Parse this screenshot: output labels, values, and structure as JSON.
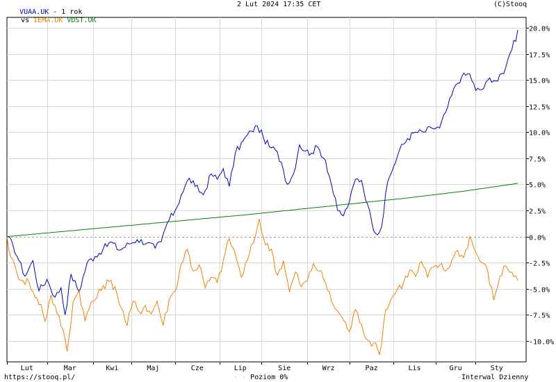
{
  "header": {
    "main_symbol": "VUAA.UK",
    "period": " - 1 rok",
    "vs_label": "vs ",
    "compare_symbols": [
      "IEMA.UK",
      "VDST.UK"
    ],
    "datetime": "2 Lut 2024 17:35 CET",
    "copyright": "(C)Stooq"
  },
  "footer": {
    "url": "https://stooq.pl/",
    "zero_level_label": "Poziom 0%",
    "interval_label": "Interwal Dzienny"
  },
  "colors": {
    "VUAA.UK": "#0000c0",
    "IEMA.UK": "#f08000",
    "VDST.UK": "#008000",
    "grid": "#d8d8d8",
    "zero_line": "#a0a0a0"
  },
  "chart_data": {
    "type": "line",
    "x_unit": "trading days (1 year, Feb 2023 - Feb 2024)",
    "month_labels": [
      "Lut",
      "Mar",
      "Kwi",
      "Maj",
      "Cze",
      "Lip",
      "Sie",
      "Wrz",
      "Paz",
      "Lis",
      "Gru",
      "Sty"
    ],
    "month_start_index": [
      0,
      20,
      43,
      62,
      84,
      106,
      127,
      150,
      171,
      193,
      214,
      234
    ],
    "x_count": 256,
    "ylim": [
      -12,
      21
    ],
    "yticks": [
      20,
      17.5,
      15,
      12.5,
      10,
      7.5,
      5,
      2.5,
      0,
      -2.5,
      -5,
      -7.5,
      -10
    ],
    "ytick_labels": [
      "20.0%",
      "17.5%",
      "15.0%",
      "12.5%",
      "10.0%",
      "7.5%",
      "5.0%",
      "2.5%",
      "0.0%",
      "-2.5%",
      "-5.0%",
      "-7.5%",
      "-10.0%"
    ],
    "series": [
      {
        "name": "VUAA.UK",
        "anchors": [
          [
            0,
            0
          ],
          [
            3,
            -0.8
          ],
          [
            6,
            -2.3
          ],
          [
            9,
            -3.8
          ],
          [
            13,
            -2.3
          ],
          [
            16,
            -5.2
          ],
          [
            20,
            -4.1
          ],
          [
            24,
            -5.8
          ],
          [
            27,
            -4.9
          ],
          [
            29,
            -7.5
          ],
          [
            32,
            -3.6
          ],
          [
            36,
            -5.3
          ],
          [
            40,
            -2.5
          ],
          [
            44,
            -1.9
          ],
          [
            48,
            -1.2
          ],
          [
            52,
            -0.5
          ],
          [
            56,
            -1.3
          ],
          [
            61,
            -0.7
          ],
          [
            65,
            -0.3
          ],
          [
            70,
            -0.6
          ],
          [
            74,
            -1.1
          ],
          [
            77,
            -0.5
          ],
          [
            80,
            1.3
          ],
          [
            84,
            2.5
          ],
          [
            87,
            4.0
          ],
          [
            91,
            5.6
          ],
          [
            94,
            4.8
          ],
          [
            98,
            4.0
          ],
          [
            102,
            6.0
          ],
          [
            105,
            5.5
          ],
          [
            108,
            6.5
          ],
          [
            111,
            4.8
          ],
          [
            114,
            8.0
          ],
          [
            118,
            9.2
          ],
          [
            122,
            10.1
          ],
          [
            125,
            10.6
          ],
          [
            128,
            9.5
          ],
          [
            131,
            8.6
          ],
          [
            134,
            8.3
          ],
          [
            137,
            7.1
          ],
          [
            140,
            5.0
          ],
          [
            143,
            6.0
          ],
          [
            146,
            8.8
          ],
          [
            149,
            8.2
          ],
          [
            152,
            8.0
          ],
          [
            155,
            8.6
          ],
          [
            159,
            7.3
          ],
          [
            162,
            5.0
          ],
          [
            165,
            2.5
          ],
          [
            168,
            2.0
          ],
          [
            171,
            3.4
          ],
          [
            174,
            5.5
          ],
          [
            177,
            5.4
          ],
          [
            180,
            3.1
          ],
          [
            182,
            1.5
          ],
          [
            184,
            0.3
          ],
          [
            187,
            0.9
          ],
          [
            190,
            5.2
          ],
          [
            193,
            6.7
          ],
          [
            196,
            8.3
          ],
          [
            200,
            9.4
          ],
          [
            204,
            10.0
          ],
          [
            208,
            10.0
          ],
          [
            212,
            10.4
          ],
          [
            216,
            10.4
          ],
          [
            220,
            12.4
          ],
          [
            224,
            14.5
          ],
          [
            227,
            15.3
          ],
          [
            231,
            15.6
          ],
          [
            234,
            14.0
          ],
          [
            238,
            14.2
          ],
          [
            241,
            15.2
          ],
          [
            245,
            14.9
          ],
          [
            249,
            16.2
          ],
          [
            251,
            17.5
          ],
          [
            253,
            18.8
          ],
          [
            254,
            18.7
          ],
          [
            255,
            19.8
          ]
        ]
      },
      {
        "name": "IEMA.UK",
        "anchors": [
          [
            0,
            0
          ],
          [
            2,
            -2.0
          ],
          [
            5,
            -3.5
          ],
          [
            8,
            -4.2
          ],
          [
            11,
            -4.3
          ],
          [
            14,
            -5.8
          ],
          [
            17,
            -6.5
          ],
          [
            19,
            -8.1
          ],
          [
            22,
            -5.6
          ],
          [
            25,
            -7.4
          ],
          [
            28,
            -8.9
          ],
          [
            30,
            -11.0
          ],
          [
            33,
            -6.3
          ],
          [
            36,
            -5.1
          ],
          [
            39,
            -8.1
          ],
          [
            42,
            -6.3
          ],
          [
            45,
            -5.8
          ],
          [
            48,
            -4.7
          ],
          [
            51,
            -4.3
          ],
          [
            54,
            -4.8
          ],
          [
            57,
            -6.8
          ],
          [
            60,
            -8.5
          ],
          [
            63,
            -6.2
          ],
          [
            66,
            -7.2
          ],
          [
            69,
            -6.6
          ],
          [
            72,
            -7.4
          ],
          [
            75,
            -6.2
          ],
          [
            78,
            -8.5
          ],
          [
            81,
            -6.0
          ],
          [
            84,
            -5.2
          ],
          [
            87,
            -2.6
          ],
          [
            90,
            -1.2
          ],
          [
            93,
            -3.3
          ],
          [
            96,
            -2.7
          ],
          [
            99,
            -4.9
          ],
          [
            102,
            -3.9
          ],
          [
            105,
            -4.4
          ],
          [
            108,
            -2.3
          ],
          [
            111,
            -0.2
          ],
          [
            114,
            -1.7
          ],
          [
            117,
            -3.9
          ],
          [
            120,
            -2.3
          ],
          [
            123,
            -0.6
          ],
          [
            126,
            1.7
          ],
          [
            129,
            -0.8
          ],
          [
            132,
            -1.2
          ],
          [
            135,
            -3.7
          ],
          [
            138,
            -2.3
          ],
          [
            141,
            -5.3
          ],
          [
            144,
            -3.4
          ],
          [
            147,
            -4.8
          ],
          [
            150,
            -4.2
          ],
          [
            153,
            -2.6
          ],
          [
            156,
            -3.3
          ],
          [
            159,
            -4.4
          ],
          [
            162,
            -6.2
          ],
          [
            165,
            -7.1
          ],
          [
            168,
            -8.0
          ],
          [
            171,
            -9.1
          ],
          [
            174,
            -7.0
          ],
          [
            177,
            -8.4
          ],
          [
            180,
            -9.9
          ],
          [
            183,
            -10.2
          ],
          [
            186,
            -11.3
          ],
          [
            189,
            -7.0
          ],
          [
            192,
            -5.9
          ],
          [
            195,
            -5.0
          ],
          [
            198,
            -4.4
          ],
          [
            201,
            -3.2
          ],
          [
            204,
            -3.8
          ],
          [
            207,
            -2.4
          ],
          [
            210,
            -3.9
          ],
          [
            213,
            -2.9
          ],
          [
            216,
            -2.7
          ],
          [
            219,
            -3.3
          ],
          [
            222,
            -2.3
          ],
          [
            225,
            -1.3
          ],
          [
            228,
            -2.0
          ],
          [
            231,
            0.0
          ],
          [
            234,
            -1.5
          ],
          [
            237,
            -2.5
          ],
          [
            240,
            -3.3
          ],
          [
            243,
            -6.1
          ],
          [
            246,
            -3.8
          ],
          [
            249,
            -2.8
          ],
          [
            252,
            -3.4
          ],
          [
            255,
            -4.2
          ]
        ]
      },
      {
        "name": "VDST.UK",
        "anchors": [
          [
            0,
            0
          ],
          [
            40,
            0.7
          ],
          [
            80,
            1.4
          ],
          [
            120,
            2.1
          ],
          [
            160,
            2.9
          ],
          [
            200,
            3.7
          ],
          [
            230,
            4.4
          ],
          [
            255,
            5.1
          ]
        ]
      }
    ]
  }
}
